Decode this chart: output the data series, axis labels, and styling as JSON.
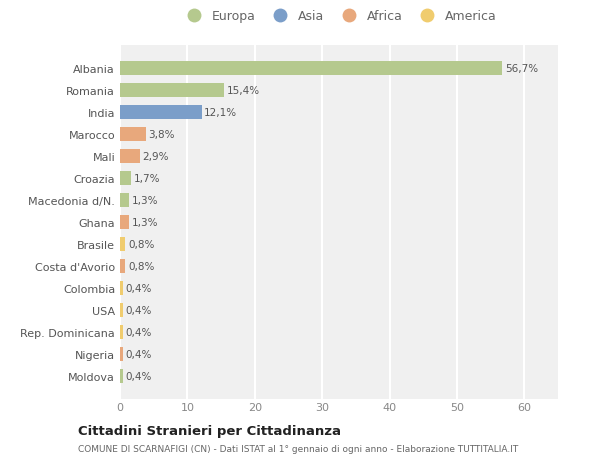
{
  "countries": [
    "Albania",
    "Romania",
    "India",
    "Marocco",
    "Mali",
    "Croazia",
    "Macedonia d/N.",
    "Ghana",
    "Brasile",
    "Costa d'Avorio",
    "Colombia",
    "USA",
    "Rep. Dominicana",
    "Nigeria",
    "Moldova"
  ],
  "values": [
    56.7,
    15.4,
    12.1,
    3.8,
    2.9,
    1.7,
    1.3,
    1.3,
    0.8,
    0.8,
    0.4,
    0.4,
    0.4,
    0.4,
    0.4
  ],
  "labels": [
    "56,7%",
    "15,4%",
    "12,1%",
    "3,8%",
    "2,9%",
    "1,7%",
    "1,3%",
    "1,3%",
    "0,8%",
    "0,8%",
    "0,4%",
    "0,4%",
    "0,4%",
    "0,4%",
    "0,4%"
  ],
  "continents": [
    "Europa",
    "Europa",
    "Asia",
    "Africa",
    "Africa",
    "Europa",
    "Europa",
    "Africa",
    "America",
    "Africa",
    "America",
    "America",
    "America",
    "Africa",
    "Europa"
  ],
  "continent_colors": {
    "Europa": "#b5c98e",
    "Asia": "#7b9ec9",
    "Africa": "#e8a87c",
    "America": "#f0cc6e"
  },
  "background_color": "#ffffff",
  "plot_bg_color": "#f0f0f0",
  "grid_color": "#ffffff",
  "title": "Cittadini Stranieri per Cittadinanza",
  "subtitle": "COMUNE DI SCARNAFIGI (CN) - Dati ISTAT al 1° gennaio di ogni anno - Elaborazione TUTTITALIA.IT",
  "xlim": [
    0,
    65
  ],
  "xticks": [
    0,
    10,
    20,
    30,
    40,
    50,
    60
  ],
  "legend_order": [
    "Europa",
    "Asia",
    "Africa",
    "America"
  ]
}
